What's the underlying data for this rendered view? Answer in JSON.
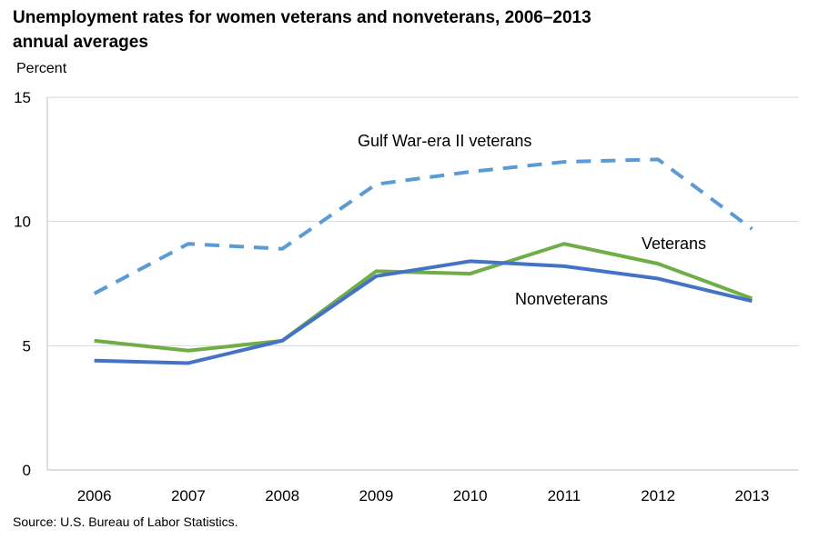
{
  "chart_data": {
    "type": "line",
    "title": "Unemployment rates for women veterans and nonveterans, 2006–2013",
    "title_line2": "annual averages",
    "ylabel": "Percent",
    "xlabel": "",
    "categories": [
      "2006",
      "2007",
      "2008",
      "2009",
      "2010",
      "2011",
      "2012",
      "2013"
    ],
    "ylim": [
      0,
      15
    ],
    "yticks": [
      0,
      5,
      10,
      15
    ],
    "grid": true,
    "legend": "inline labels",
    "series": [
      {
        "name": "Gulf War-era II veterans",
        "values": [
          7.1,
          9.1,
          8.9,
          11.5,
          12.0,
          12.4,
          12.5,
          9.7
        ],
        "color": "#5B9BD5",
        "style": "dashed"
      },
      {
        "name": "Veterans",
        "values": [
          5.2,
          4.8,
          5.2,
          8.0,
          7.9,
          9.1,
          8.3,
          6.9
        ],
        "color": "#70AD47",
        "style": "solid"
      },
      {
        "name": "Nonveterans",
        "values": [
          4.4,
          4.3,
          5.2,
          7.8,
          8.4,
          8.2,
          7.7,
          6.8
        ],
        "color": "#4472C4",
        "style": "solid"
      }
    ]
  },
  "source": "Source: U.S. Bureau of Labor Statistics."
}
